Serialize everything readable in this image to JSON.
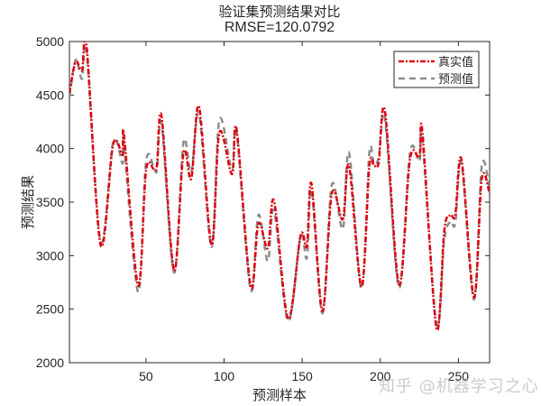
{
  "chart_data": {
    "type": "line",
    "title": "验证集预测结果对比",
    "subtitle": "RMSE=120.0792",
    "xlabel": "预测样本",
    "ylabel": "预测结果",
    "xlim": [
      1,
      270
    ],
    "ylim": [
      2000,
      5000
    ],
    "xticks": [
      50,
      100,
      150,
      200,
      250
    ],
    "yticks": [
      2000,
      2500,
      3000,
      3500,
      4000,
      4500,
      5000
    ],
    "grid": false,
    "legend_position": "top-right",
    "series": [
      {
        "name": "真实值",
        "color": "#e0000d",
        "style": "dash-dot",
        "x": [
          1,
          5,
          9,
          12,
          21,
          29,
          35,
          36,
          45,
          50,
          55,
          57,
          60,
          68,
          74,
          79,
          84,
          92,
          97,
          105,
          108,
          117,
          122,
          128,
          132,
          141,
          149,
          153,
          156,
          163,
          169,
          176,
          180,
          188,
          193,
          196,
          199,
          203,
          212,
          219,
          225,
          227,
          236,
          241,
          245,
          248,
          252,
          260,
          265,
          270
        ],
        "values": [
          4520,
          4810,
          4730,
          4950,
          3100,
          4040,
          3940,
          4120,
          2720,
          3790,
          3810,
          3840,
          4300,
          2860,
          3960,
          3720,
          4390,
          3100,
          4150,
          3760,
          4180,
          2710,
          3300,
          3070,
          3510,
          2410,
          3190,
          3090,
          3670,
          2480,
          3580,
          3340,
          3840,
          2710,
          3830,
          3840,
          3870,
          4350,
          2730,
          3900,
          3920,
          4150,
          2320,
          3240,
          3380,
          3380,
          3900,
          2610,
          3720,
          3580
        ]
      },
      {
        "name": "预测值",
        "color": "#8c8c8c",
        "style": "dashed",
        "x": [
          1,
          5,
          9,
          12,
          21,
          29,
          35,
          36,
          45,
          50,
          55,
          57,
          60,
          68,
          74,
          79,
          84,
          92,
          97,
          105,
          108,
          117,
          122,
          128,
          132,
          141,
          149,
          153,
          156,
          163,
          169,
          176,
          180,
          188,
          193,
          196,
          199,
          203,
          212,
          219,
          225,
          227,
          236,
          241,
          245,
          248,
          252,
          260,
          265,
          270
        ],
        "values": [
          4480,
          4830,
          4650,
          4900,
          3130,
          4060,
          3860,
          4020,
          2660,
          3870,
          3830,
          3800,
          4230,
          2840,
          4060,
          3780,
          4320,
          3080,
          4270,
          3800,
          4150,
          2680,
          3380,
          2950,
          3420,
          2390,
          3180,
          2980,
          3610,
          2460,
          3660,
          3250,
          3960,
          2690,
          3960,
          3850,
          3920,
          4280,
          2700,
          3960,
          3880,
          4070,
          2350,
          3150,
          3320,
          3300,
          3860,
          2590,
          3840,
          3620
        ]
      }
    ]
  },
  "title": {
    "main": "验证集预测结果对比",
    "rmse": "RMSE=120.0792"
  },
  "axes": {
    "xlabel": "预测样本",
    "ylabel": "预测结果",
    "xtick_labels": [
      "50",
      "100",
      "150",
      "200",
      "250"
    ],
    "ytick_labels": [
      "2000",
      "2500",
      "3000",
      "3500",
      "4000",
      "4500",
      "5000"
    ]
  },
  "legend": {
    "items": [
      {
        "label": "真实值",
        "color": "#e0000d"
      },
      {
        "label": "预测值",
        "color": "#8c8c8c"
      }
    ]
  },
  "watermark": "知乎 @机器学习之心"
}
